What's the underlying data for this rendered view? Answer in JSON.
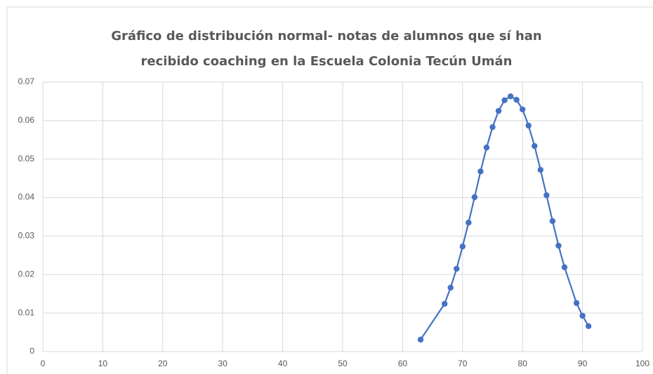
{
  "chart_data": {
    "type": "scatter",
    "title": "Gráfico de distribución normal- notas de alumnos que sí han recibido coaching en la Escuela Colonia Tecún Umán",
    "series": [
      {
        "color": "#4472c4",
        "x": [
          63,
          67,
          68,
          69,
          70,
          71,
          72,
          73,
          74,
          75,
          76,
          77,
          78,
          79,
          80,
          81,
          82,
          83,
          84,
          85,
          86,
          87,
          89,
          90,
          91
        ],
        "values": [
          0.0031,
          0.0124,
          0.0166,
          0.0215,
          0.0273,
          0.0335,
          0.0401,
          0.0468,
          0.053,
          0.0583,
          0.0625,
          0.0653,
          0.0663,
          0.0654,
          0.0629,
          0.0587,
          0.0534,
          0.0472,
          0.0406,
          0.0339,
          0.0275,
          0.0219,
          0.0126,
          0.0093,
          0.0066
        ]
      }
    ],
    "xlim": [
      0,
      100
    ],
    "xticks": [
      0,
      10,
      20,
      30,
      40,
      50,
      60,
      70,
      80,
      90,
      100
    ],
    "ylim": [
      0,
      0.07
    ],
    "yticks": [
      0,
      0.01,
      0.02,
      0.03,
      0.04,
      0.05,
      0.06,
      0.07
    ],
    "grid": true,
    "lines": true,
    "markers": true
  }
}
